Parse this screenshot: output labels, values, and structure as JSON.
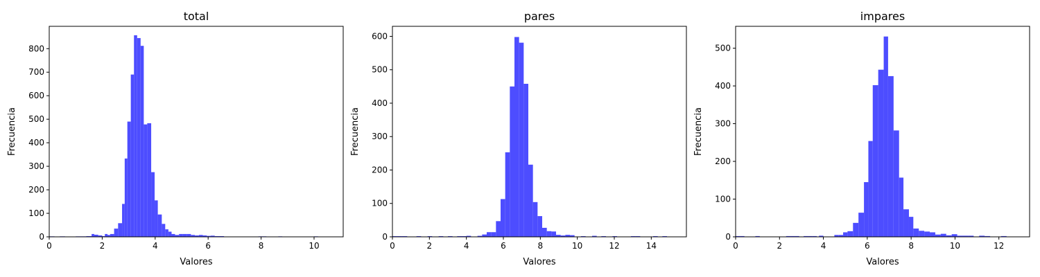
{
  "chart_data": [
    {
      "type": "bar",
      "title": "total",
      "xlabel": "Valores",
      "ylabel": "Frecuencia",
      "xlim": [
        0,
        11.1
      ],
      "ylim": [
        0,
        895
      ],
      "xticks": [
        "0",
        "2",
        "4",
        "6",
        "8",
        "10"
      ],
      "yticks": [
        "0",
        "100",
        "200",
        "300",
        "400",
        "500",
        "600",
        "700",
        "800"
      ],
      "bins": [
        [
          0.0,
          0.2,
          2
        ],
        [
          0.4,
          0.6,
          2
        ],
        [
          1.0,
          1.2,
          2
        ],
        [
          1.2,
          1.4,
          2
        ],
        [
          1.4,
          1.6,
          3
        ],
        [
          1.6,
          1.7,
          12
        ],
        [
          1.7,
          1.85,
          9
        ],
        [
          1.85,
          2.0,
          6
        ],
        [
          2.0,
          2.1,
          3
        ],
        [
          2.1,
          2.2,
          12
        ],
        [
          2.2,
          2.3,
          8
        ],
        [
          2.3,
          2.45,
          12
        ],
        [
          2.45,
          2.6,
          35
        ],
        [
          2.6,
          2.75,
          58
        ],
        [
          2.75,
          2.85,
          140
        ],
        [
          2.85,
          2.95,
          333
        ],
        [
          2.95,
          3.08,
          490
        ],
        [
          3.08,
          3.2,
          690
        ],
        [
          3.2,
          3.32,
          857
        ],
        [
          3.32,
          3.45,
          845
        ],
        [
          3.45,
          3.57,
          812
        ],
        [
          3.57,
          3.7,
          478
        ],
        [
          3.7,
          3.85,
          483
        ],
        [
          3.85,
          3.98,
          275
        ],
        [
          3.98,
          4.1,
          155
        ],
        [
          4.1,
          4.25,
          95
        ],
        [
          4.25,
          4.38,
          55
        ],
        [
          4.38,
          4.5,
          32
        ],
        [
          4.5,
          4.62,
          22
        ],
        [
          4.62,
          4.75,
          12
        ],
        [
          4.75,
          4.9,
          8
        ],
        [
          4.9,
          5.05,
          12
        ],
        [
          5.05,
          5.2,
          12
        ],
        [
          5.2,
          5.35,
          12
        ],
        [
          5.35,
          5.5,
          8
        ],
        [
          5.5,
          5.65,
          6
        ],
        [
          5.65,
          5.8,
          8
        ],
        [
          5.8,
          5.95,
          6
        ],
        [
          5.95,
          6.1,
          4
        ],
        [
          6.1,
          6.25,
          5
        ],
        [
          6.25,
          6.4,
          3
        ],
        [
          6.4,
          6.6,
          3
        ],
        [
          7.9,
          8.05,
          2
        ],
        [
          8.05,
          8.2,
          2
        ],
        [
          8.65,
          8.8,
          2
        ],
        [
          10.0,
          10.15,
          2
        ]
      ]
    },
    {
      "type": "bar",
      "title": "pares",
      "xlabel": "Valores",
      "ylabel": "Frecuencia",
      "xlim": [
        0,
        15.9
      ],
      "ylim": [
        0,
        630
      ],
      "xticks": [
        "0",
        "2",
        "4",
        "6",
        "8",
        "10",
        "12",
        "14"
      ],
      "yticks": [
        "0",
        "100",
        "200",
        "300",
        "400",
        "500",
        "600"
      ],
      "bins": [
        [
          0.0,
          0.25,
          2
        ],
        [
          0.25,
          0.5,
          2
        ],
        [
          0.5,
          0.8,
          2
        ],
        [
          1.3,
          1.55,
          2
        ],
        [
          1.9,
          2.15,
          2
        ],
        [
          2.5,
          2.75,
          2
        ],
        [
          3.0,
          3.25,
          2
        ],
        [
          3.5,
          3.75,
          2
        ],
        [
          3.75,
          4.0,
          2
        ],
        [
          4.0,
          4.25,
          3
        ],
        [
          4.6,
          4.85,
          3
        ],
        [
          4.85,
          5.1,
          7
        ],
        [
          5.1,
          5.35,
          14
        ],
        [
          5.35,
          5.6,
          14
        ],
        [
          5.6,
          5.85,
          47
        ],
        [
          5.85,
          6.1,
          113
        ],
        [
          6.1,
          6.35,
          253
        ],
        [
          6.35,
          6.6,
          450
        ],
        [
          6.6,
          6.85,
          598
        ],
        [
          6.85,
          7.1,
          581
        ],
        [
          7.1,
          7.35,
          458
        ],
        [
          7.35,
          7.6,
          216
        ],
        [
          7.6,
          7.85,
          104
        ],
        [
          7.85,
          8.1,
          62
        ],
        [
          8.1,
          8.35,
          27
        ],
        [
          8.35,
          8.6,
          17
        ],
        [
          8.6,
          8.85,
          16
        ],
        [
          8.85,
          9.1,
          6
        ],
        [
          9.1,
          9.35,
          4
        ],
        [
          9.35,
          9.6,
          6
        ],
        [
          9.6,
          9.85,
          5
        ],
        [
          10.2,
          10.45,
          2
        ],
        [
          10.8,
          11.05,
          3
        ],
        [
          11.3,
          11.55,
          2
        ],
        [
          11.9,
          12.15,
          2
        ],
        [
          12.9,
          13.15,
          2
        ],
        [
          13.15,
          13.4,
          2
        ],
        [
          14.1,
          14.35,
          2
        ],
        [
          14.6,
          14.85,
          2
        ]
      ]
    },
    {
      "type": "bar",
      "title": "impares",
      "xlabel": "Valores",
      "ylabel": "Frecuencia",
      "xlim": [
        0,
        13.4
      ],
      "ylim": [
        0,
        558
      ],
      "xticks": [
        "0",
        "2",
        "4",
        "6",
        "8",
        "10",
        "12"
      ],
      "yticks": [
        "0",
        "100",
        "200",
        "300",
        "400",
        "500"
      ],
      "bins": [
        [
          0.0,
          0.2,
          2
        ],
        [
          0.2,
          0.4,
          2
        ],
        [
          0.9,
          1.1,
          2
        ],
        [
          2.3,
          2.5,
          2
        ],
        [
          2.5,
          2.7,
          2
        ],
        [
          2.7,
          2.9,
          2
        ],
        [
          3.1,
          3.3,
          2
        ],
        [
          3.3,
          3.5,
          2
        ],
        [
          3.5,
          3.7,
          2
        ],
        [
          3.8,
          4.0,
          3
        ],
        [
          4.5,
          4.7,
          5
        ],
        [
          4.7,
          4.9,
          5
        ],
        [
          4.9,
          5.1,
          12
        ],
        [
          5.1,
          5.35,
          15
        ],
        [
          5.35,
          5.6,
          37
        ],
        [
          5.6,
          5.85,
          64
        ],
        [
          5.85,
          6.05,
          145
        ],
        [
          6.05,
          6.25,
          254
        ],
        [
          6.25,
          6.5,
          402
        ],
        [
          6.5,
          6.75,
          443
        ],
        [
          6.75,
          6.95,
          531
        ],
        [
          6.95,
          7.2,
          426
        ],
        [
          7.2,
          7.45,
          282
        ],
        [
          7.45,
          7.65,
          157
        ],
        [
          7.65,
          7.9,
          73
        ],
        [
          7.9,
          8.1,
          53
        ],
        [
          8.1,
          8.35,
          22
        ],
        [
          8.35,
          8.6,
          16
        ],
        [
          8.6,
          8.85,
          14
        ],
        [
          8.85,
          9.1,
          12
        ],
        [
          9.1,
          9.35,
          6
        ],
        [
          9.35,
          9.6,
          8
        ],
        [
          9.6,
          9.85,
          4
        ],
        [
          9.85,
          10.1,
          7
        ],
        [
          10.1,
          10.35,
          3
        ],
        [
          10.35,
          10.6,
          3
        ],
        [
          10.6,
          10.85,
          3
        ],
        [
          11.1,
          11.35,
          3
        ],
        [
          11.35,
          11.6,
          2
        ],
        [
          12.1,
          12.35,
          2
        ]
      ]
    }
  ],
  "colors": {
    "bar": "#4d4dff",
    "axis": "#000000",
    "background": "#ffffff"
  }
}
